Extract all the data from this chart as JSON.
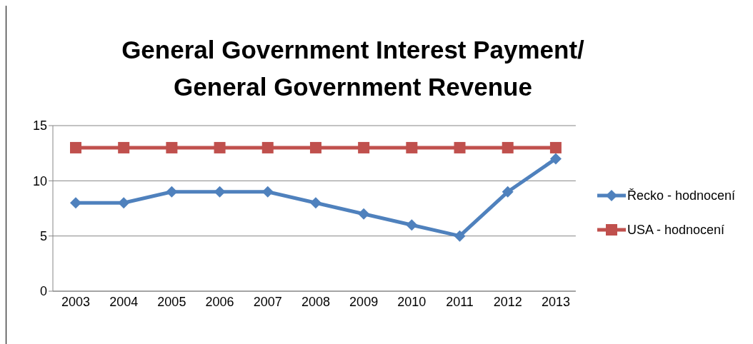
{
  "chart_data": {
    "type": "line",
    "title": "General Government Interest Payment/ General Government Revenue",
    "categories": [
      "2003",
      "2004",
      "2005",
      "2006",
      "2007",
      "2008",
      "2009",
      "2010",
      "2011",
      "2012",
      "2013"
    ],
    "series": [
      {
        "name": "Řecko - hodnocení",
        "color": "#4f81bd",
        "marker": "diamond",
        "values": [
          8,
          8,
          9,
          9,
          9,
          8,
          7,
          6,
          5,
          9,
          12
        ]
      },
      {
        "name": "USA - hodnocení",
        "color": "#c0504d",
        "marker": "square",
        "values": [
          13,
          13,
          13,
          13,
          13,
          13,
          13,
          13,
          13,
          13,
          13
        ]
      }
    ],
    "ylim": [
      0,
      15
    ],
    "yticks": [
      0,
      5,
      10,
      15
    ],
    "grid": "y",
    "legend": "right",
    "line_style": "solid"
  }
}
